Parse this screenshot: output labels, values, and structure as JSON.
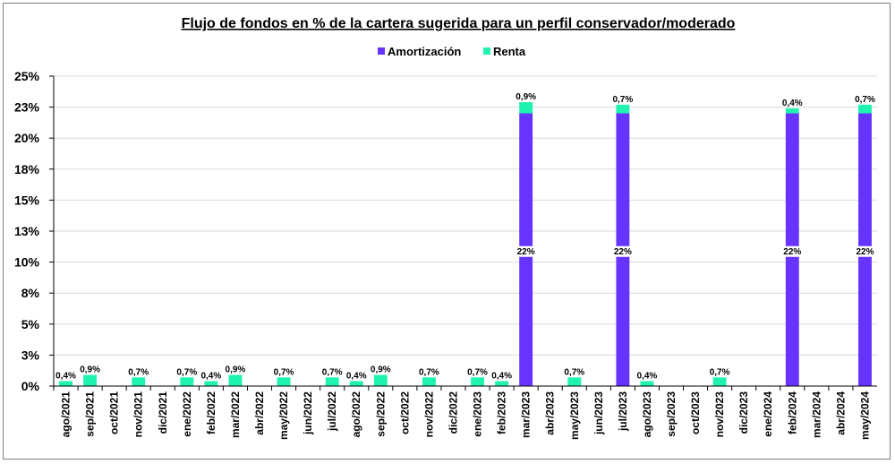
{
  "chart_data": {
    "type": "bar",
    "stacked": true,
    "title": "Flujo de fondos en % de la cartera sugerida para un perfil conservador/moderado",
    "xlabel": "",
    "ylabel": "",
    "ylim": [
      0,
      25
    ],
    "yticks": [
      "0%",
      "3%",
      "5%",
      "8%",
      "10%",
      "13%",
      "15%",
      "18%",
      "20%",
      "23%",
      "25%"
    ],
    "grid": true,
    "legend_position": "top",
    "categories": [
      "ago/2021",
      "sep/2021",
      "oct/2021",
      "nov/2021",
      "dic/2021",
      "ene/2022",
      "feb/2022",
      "mar/2022",
      "abr/2022",
      "may/2022",
      "jun/2022",
      "jul/2022",
      "ago/2022",
      "sep/2022",
      "oct/2022",
      "nov/2022",
      "dic/2022",
      "ene/2023",
      "feb/2023",
      "mar/2023",
      "abr/2023",
      "may/2023",
      "jun/2023",
      "jul/2023",
      "ago/2023",
      "sep/2023",
      "oct/2023",
      "nov/2023",
      "dic/2023",
      "ene/2024",
      "feb/2024",
      "mar/2024",
      "abr/2024",
      "may/2024"
    ],
    "series": [
      {
        "name": "Amortización",
        "color": "#6633ff",
        "values": [
          0,
          0,
          0,
          0,
          0,
          0,
          0,
          0,
          0,
          0,
          0,
          0,
          0,
          0,
          0,
          0,
          0,
          0,
          0,
          22,
          0,
          0,
          0,
          22,
          0,
          0,
          0,
          0,
          0,
          0,
          22,
          0,
          0,
          22
        ],
        "labels": [
          "",
          "",
          "",
          "",
          "",
          "",
          "",
          "",
          "",
          "",
          "",
          "",
          "",
          "",
          "",
          "",
          "",
          "",
          "",
          "22%",
          "",
          "",
          "",
          "22%",
          "",
          "",
          "",
          "",
          "",
          "",
          "22%",
          "",
          "",
          "22%"
        ]
      },
      {
        "name": "Renta",
        "color": "#1ef3b0",
        "values": [
          0.4,
          0.9,
          0,
          0.7,
          0,
          0.7,
          0.4,
          0.9,
          0,
          0.7,
          0,
          0.7,
          0.4,
          0.9,
          0,
          0.7,
          0,
          0.7,
          0.4,
          0.9,
          0,
          0.7,
          0,
          0.7,
          0.4,
          0,
          0,
          0.7,
          0,
          0,
          0.4,
          0,
          0,
          0.7
        ],
        "labels": [
          "0,4%",
          "0,9%",
          "",
          "0,7%",
          "",
          "0,7%",
          "0,4%",
          "0,9%",
          "",
          "0,7%",
          "",
          "0,7%",
          "0,4%",
          "0,9%",
          "",
          "0,7%",
          "",
          "0,7%",
          "0,4%",
          "0,9%",
          "",
          "0,7%",
          "",
          "0,7%",
          "0,4%",
          "",
          "",
          "0,7%",
          "",
          "",
          "0,4%",
          "",
          "",
          "0,7%"
        ]
      }
    ]
  }
}
